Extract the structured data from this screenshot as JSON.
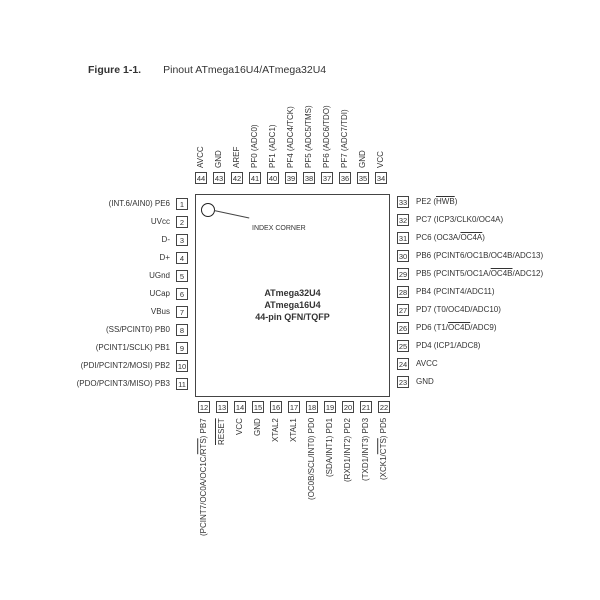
{
  "figure": {
    "number": "Figure 1-1.",
    "caption": "Pinout ATmega16U4/ATmega32U4"
  },
  "chip": {
    "line1": "ATmega32U4",
    "line2": "ATmega16U4",
    "line3": "44-pin QFN/TQFP"
  },
  "index_label": "INDEX CORNER",
  "pins": {
    "left": [
      {
        "n": "1",
        "pre": "(INT.6/AIN0) PE6"
      },
      {
        "n": "2",
        "pre": "UVcc"
      },
      {
        "n": "3",
        "pre": "D-"
      },
      {
        "n": "4",
        "pre": "D+"
      },
      {
        "n": "5",
        "pre": "UGnd"
      },
      {
        "n": "6",
        "pre": "UCap"
      },
      {
        "n": "7",
        "pre": "VBus"
      },
      {
        "n": "8",
        "pre": "(SS/PCINT0) PB0"
      },
      {
        "n": "9",
        "pre": "(PCINT1/SCLK) PB1"
      },
      {
        "n": "10",
        "pre": "(PDI/PCINT2/MOSI) PB2"
      },
      {
        "n": "11",
        "pre": "(PDO/PCINT3/MISO) PB3"
      }
    ],
    "bottom": [
      {
        "n": "12",
        "pre": "(PCINT7/OC0A/OC1C/",
        "ov": "RTS",
        "post": ") PB7"
      },
      {
        "n": "13",
        "ov": "RESET"
      },
      {
        "n": "14",
        "pre": "VCC"
      },
      {
        "n": "15",
        "pre": "GND"
      },
      {
        "n": "16",
        "pre": "XTAL2"
      },
      {
        "n": "17",
        "pre": "XTAL1"
      },
      {
        "n": "18",
        "pre": "(OC0B/SCL/INT0) PD0"
      },
      {
        "n": "19",
        "pre": "(SDA/INT1) PD1"
      },
      {
        "n": "20",
        "pre": "(RXD1/INT2) PD2"
      },
      {
        "n": "21",
        "pre": "(TXD1/INT3) PD3"
      },
      {
        "n": "22",
        "pre": "(XCK1/",
        "ov": "CTS",
        "post": ") PD5"
      }
    ],
    "right": [
      {
        "n": "23",
        "pre": "GND"
      },
      {
        "n": "24",
        "pre": "AVCC"
      },
      {
        "n": "25",
        "pre": "PD4 (ICP1/ADC8)"
      },
      {
        "n": "26",
        "pre": "PD6 (T1/",
        "ov": "OC4D",
        "post": "/ADC9)"
      },
      {
        "n": "27",
        "pre": "PD7 (T0/OC4D/ADC10)"
      },
      {
        "n": "28",
        "pre": "PB4 (PCINT4/ADC11)"
      },
      {
        "n": "29",
        "pre": "PB5 (PCINT5/OC1A/",
        "ov": "OC4B",
        "post": "/ADC12)"
      },
      {
        "n": "30",
        "pre": "PB6 (PCINT6/OC1B/OC4B/ADC13)"
      },
      {
        "n": "31",
        "pre": "PC6 (OC3A/",
        "ov": "OC4A",
        "post": ")"
      },
      {
        "n": "32",
        "pre": "PC7 (ICP3/CLK0/OC4A)"
      },
      {
        "n": "33",
        "pre": "PE2 (",
        "ov": "HWB",
        "post": ")"
      }
    ],
    "top": [
      {
        "n": "34",
        "pre": "VCC"
      },
      {
        "n": "35",
        "pre": "GND"
      },
      {
        "n": "36",
        "pre": "PF7 (ADC7/TDI)"
      },
      {
        "n": "37",
        "pre": "PF6 (ADC6/TDO)"
      },
      {
        "n": "38",
        "pre": "PF5 (ADC5/TMS)"
      },
      {
        "n": "39",
        "pre": "PF4 (ADC4/TCK)"
      },
      {
        "n": "40",
        "pre": "PF1 (ADC1)"
      },
      {
        "n": "41",
        "pre": "PF0 (ADC0)"
      },
      {
        "n": "42",
        "pre": "AREF"
      },
      {
        "n": "43",
        "pre": "GND"
      },
      {
        "n": "44",
        "pre": "AVCC"
      }
    ]
  }
}
